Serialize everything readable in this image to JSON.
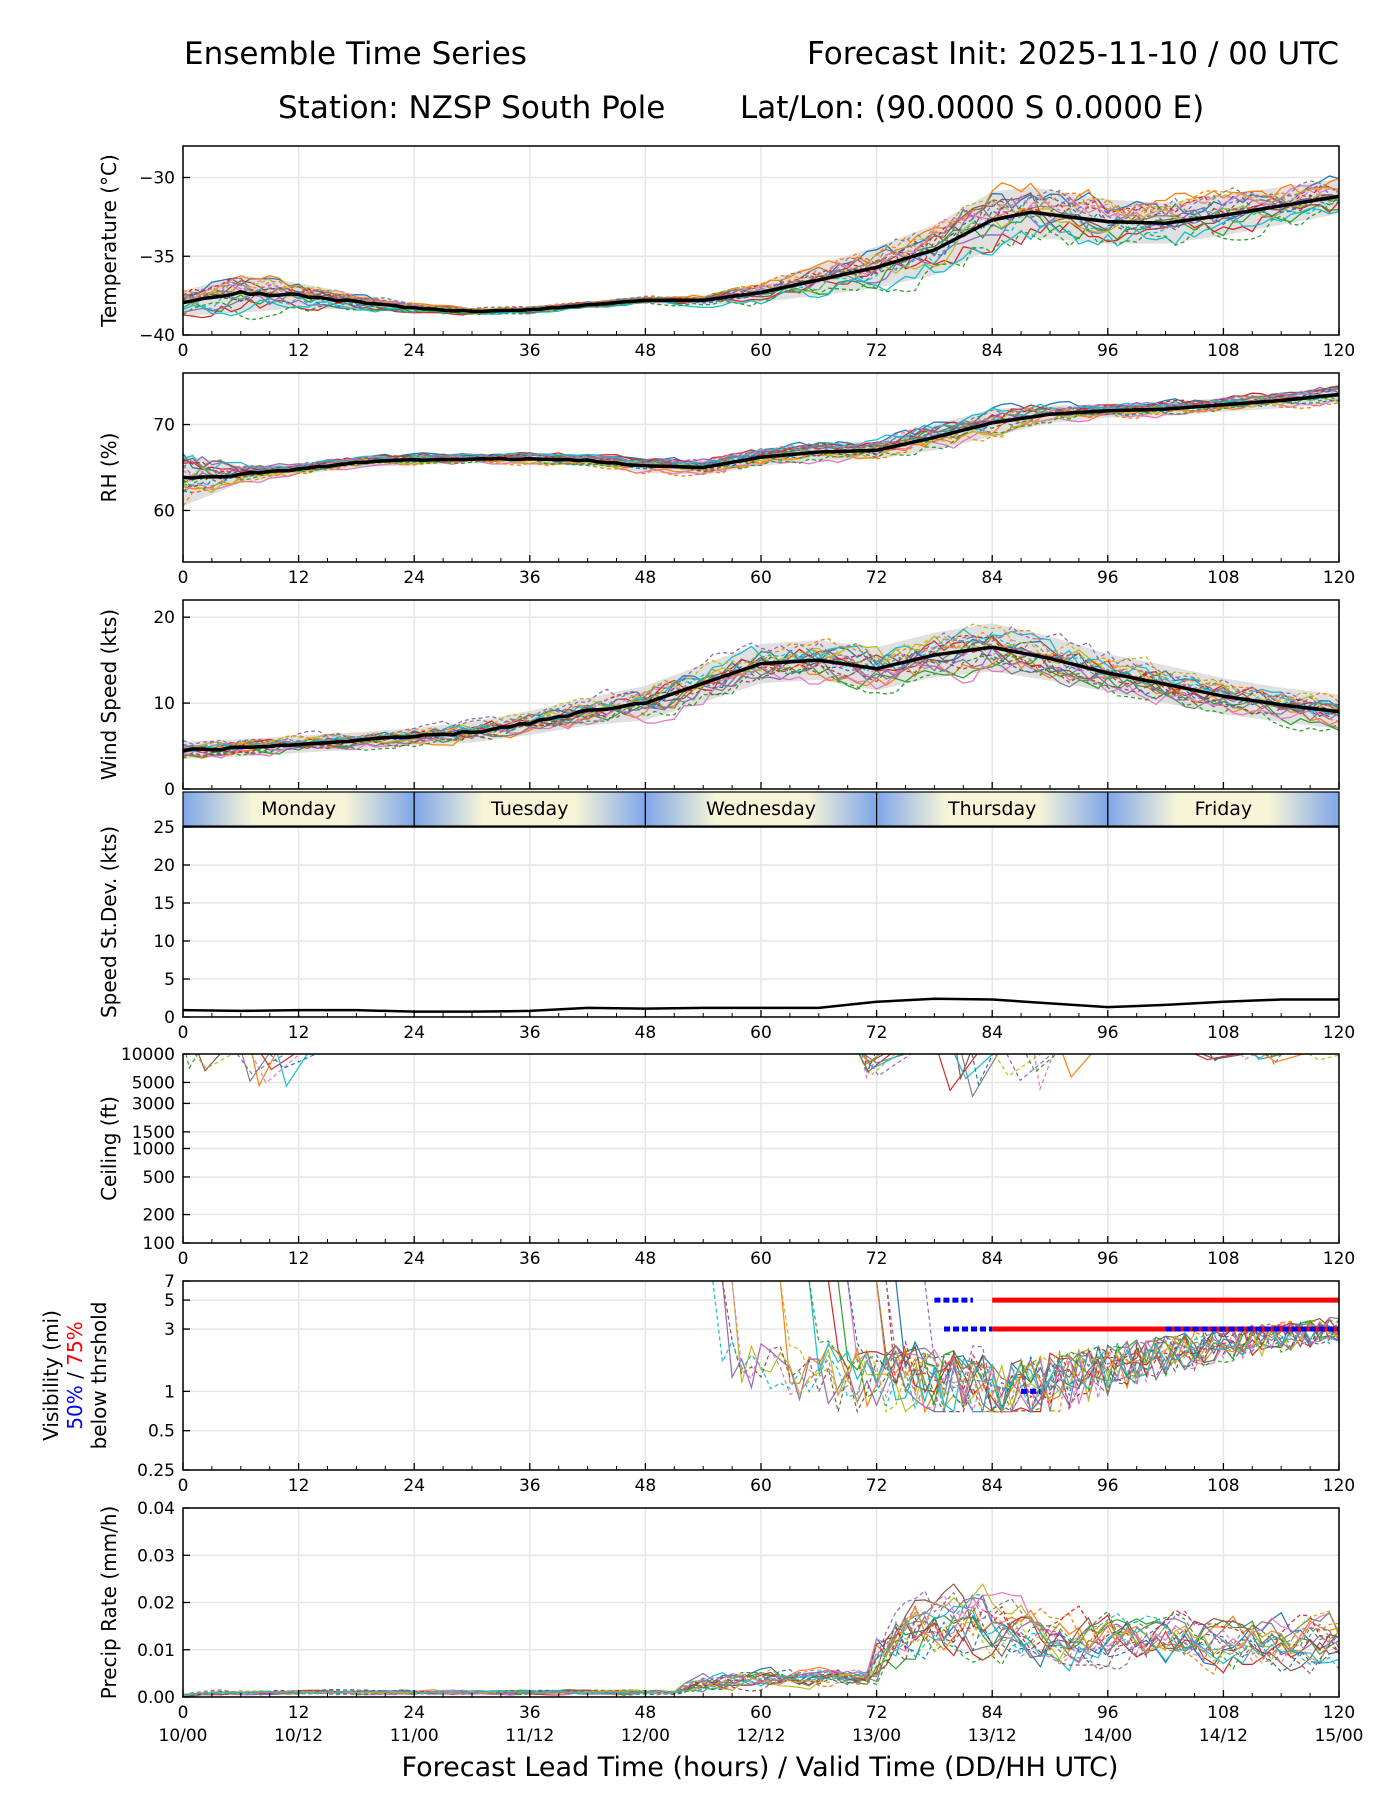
{
  "header": {
    "title_left": "Ensemble Time Series",
    "title_right": "Forecast Init: 2025-11-10 / 00 UTC",
    "station": "Station: NZSP South Pole",
    "latlon": "Lat/Lon: (90.0000 S 0.0000 E)"
  },
  "colors": {
    "mean": "#000000",
    "band": "#d3d3d3",
    "grid": "#e6e6e6",
    "vis50": "#0000ff",
    "vis75": "#ff0000",
    "members": [
      "#1f77b4",
      "#ff7f0e",
      "#2ca02c",
      "#d62728",
      "#9467bd",
      "#8c564b",
      "#e377c2",
      "#7f7f7f",
      "#bcbd22",
      "#17becf"
    ]
  },
  "chart_data": {
    "type": "line",
    "x_label": "Forecast Lead Time (hours) / Valid Time (DD/HH UTC)",
    "x_range": [
      0,
      120
    ],
    "lead_ticks": [
      "0",
      "12",
      "24",
      "36",
      "48",
      "60",
      "72",
      "84",
      "96",
      "108",
      "120"
    ],
    "valid_ticks": [
      "10/00",
      "10/12",
      "11/00",
      "11/12",
      "12/00",
      "12/12",
      "13/00",
      "13/12",
      "14/00",
      "14/12",
      "15/00"
    ],
    "days": [
      "Monday",
      "Tuesday",
      "Wednesday",
      "Thursday",
      "Friday"
    ],
    "panels": [
      {
        "id": "temperature",
        "ylabel": "Temperature (°C)",
        "ylim": [
          -40,
          -28
        ],
        "yticks": [
          -40,
          -35,
          -30
        ],
        "ytick_labels": [
          "−40",
          "−35",
          "−30"
        ],
        "mean_x": [
          0,
          6,
          12,
          18,
          24,
          30,
          36,
          42,
          48,
          54,
          60,
          66,
          72,
          78,
          84,
          88,
          96,
          102,
          108,
          114,
          120
        ],
        "mean_y": [
          -38.0,
          -37.4,
          -37.5,
          -37.9,
          -38.3,
          -38.5,
          -38.4,
          -38.1,
          -37.8,
          -37.8,
          -37.3,
          -36.5,
          -35.7,
          -34.6,
          -32.7,
          -32.2,
          -32.8,
          -32.9,
          -32.4,
          -31.8,
          -31.2
        ],
        "spread": [
          0.8,
          1.2,
          0.8,
          0.5,
          0.3,
          0.2,
          0.2,
          0.2,
          0.2,
          0.3,
          0.6,
          1.0,
          1.3,
          1.6,
          1.8,
          1.6,
          1.4,
          1.3,
          1.3,
          1.2,
          1.1
        ]
      },
      {
        "id": "rh",
        "ylabel": "RH (%)",
        "ylim": [
          54,
          76
        ],
        "yticks": [
          60,
          70
        ],
        "ytick_labels": [
          "60",
          "70"
        ],
        "mean_x": [
          0,
          6,
          12,
          18,
          24,
          30,
          36,
          42,
          48,
          54,
          60,
          66,
          72,
          78,
          84,
          90,
          96,
          102,
          108,
          114,
          120
        ],
        "mean_y": [
          63.5,
          64.2,
          64.8,
          65.6,
          65.9,
          66.0,
          66.0,
          65.8,
          65.2,
          65.0,
          66.2,
          66.8,
          67.0,
          68.5,
          70.2,
          71.2,
          71.6,
          71.8,
          72.3,
          72.8,
          73.5
        ],
        "spread": [
          3.0,
          1.0,
          0.6,
          0.6,
          0.6,
          0.5,
          0.6,
          0.6,
          0.8,
          0.9,
          1.0,
          1.0,
          1.0,
          1.5,
          1.6,
          1.0,
          0.8,
          0.8,
          0.8,
          0.9,
          1.0
        ]
      },
      {
        "id": "wind",
        "ylabel": "Wind Speed (kts)",
        "ylim": [
          0,
          22
        ],
        "yticks": [
          0,
          10,
          20
        ],
        "ytick_labels": [
          "0",
          "10",
          "20"
        ],
        "mean_x": [
          0,
          6,
          12,
          18,
          24,
          30,
          36,
          42,
          48,
          54,
          60,
          66,
          72,
          78,
          84,
          90,
          96,
          102,
          108,
          114,
          120
        ],
        "mean_y": [
          4.5,
          4.8,
          5.2,
          5.6,
          6.1,
          6.6,
          7.7,
          9.0,
          10.0,
          12.3,
          14.6,
          15.0,
          14.0,
          15.6,
          16.5,
          15.2,
          13.5,
          12.2,
          10.8,
          9.8,
          9.0
        ],
        "spread": [
          1.0,
          1.0,
          1.0,
          1.0,
          1.0,
          1.2,
          1.4,
          1.6,
          2.0,
          2.2,
          2.3,
          2.3,
          2.5,
          2.6,
          2.8,
          2.6,
          2.2,
          2.2,
          2.1,
          2.0,
          2.0
        ]
      },
      {
        "id": "sd",
        "ylabel": "Speed St.Dev. (kts)",
        "ylim": [
          0,
          25
        ],
        "yticks": [
          0,
          5,
          10,
          15,
          20,
          25
        ],
        "ytick_labels": [
          "0",
          "5",
          "10",
          "15",
          "20",
          "25"
        ],
        "x": [
          0,
          6,
          12,
          18,
          24,
          30,
          36,
          42,
          48,
          54,
          60,
          66,
          72,
          78,
          84,
          90,
          96,
          102,
          108,
          114,
          120
        ],
        "y": [
          0.9,
          0.8,
          0.9,
          0.9,
          0.7,
          0.7,
          0.8,
          1.2,
          1.1,
          1.2,
          1.2,
          1.2,
          2.0,
          2.4,
          2.3,
          1.8,
          1.3,
          1.6,
          2.0,
          2.3,
          2.3
        ]
      },
      {
        "id": "ceiling",
        "ylabel": "Ceiling (ft)",
        "ylim": [
          100,
          10000
        ],
        "yscale": "log",
        "yticks": [
          100,
          200,
          500,
          1000,
          1500,
          3000,
          5000,
          10000
        ],
        "ytick_labels": [
          "100",
          "200",
          "500",
          "1000",
          "1500",
          "3000",
          "5000",
          "10000"
        ]
      },
      {
        "id": "visibility",
        "ylabel_lines": [
          "Visibility (mi)",
          "50% / 75%",
          "below thrshold"
        ],
        "ylim": [
          0.25,
          7
        ],
        "yscale": "log",
        "yticks": [
          0.25,
          0.5,
          1,
          3,
          5,
          7
        ],
        "ytick_labels": [
          "0.25",
          "0.5",
          "1",
          "3",
          "5",
          "7"
        ],
        "threshold_75": [
          {
            "y": 5,
            "x0": 84,
            "x1": 120
          },
          {
            "y": 3,
            "x0": 84,
            "x1": 120
          }
        ],
        "threshold_50": [
          {
            "y": 5,
            "x0": 78,
            "x1": 82
          },
          {
            "y": 3,
            "x0": 79,
            "x1": 84
          },
          {
            "y": 3,
            "x0": 102,
            "x1": 120
          },
          {
            "y": 1,
            "x0": 87,
            "x1": 89
          }
        ]
      },
      {
        "id": "precip",
        "ylabel": "Precip Rate (mm/h)",
        "ylim": [
          0,
          0.04
        ],
        "yticks": [
          0,
          0.01,
          0.02,
          0.03,
          0.04
        ],
        "ytick_labels": [
          "0.00",
          "0.01",
          "0.02",
          "0.03",
          "0.04"
        ]
      }
    ],
    "members_count": 20
  }
}
